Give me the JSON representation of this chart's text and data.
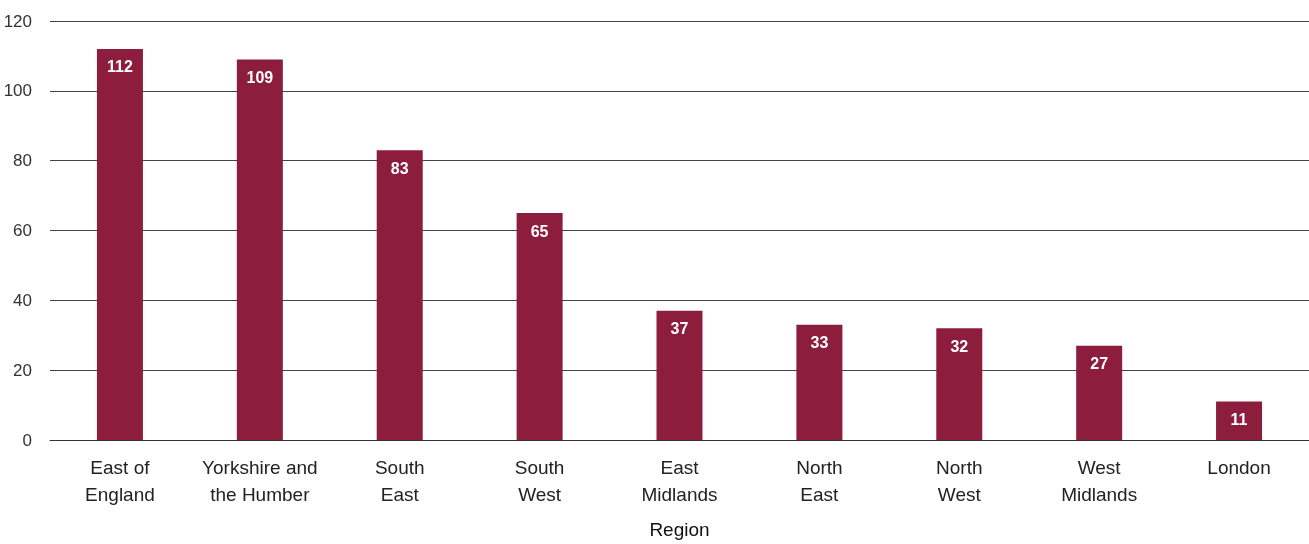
{
  "chart_data": {
    "type": "bar",
    "xlabel": "Region",
    "categories": [
      "East of England",
      "Yorkshire and the Humber",
      "South East",
      "South West",
      "East Midlands",
      "North East",
      "North West",
      "West Midlands",
      "London"
    ],
    "values": [
      112,
      109,
      83,
      65,
      37,
      33,
      32,
      27,
      11
    ],
    "color": "#8c1d3c",
    "ylim": [
      0,
      120
    ],
    "yticks": [
      0,
      20,
      40,
      60,
      80,
      100,
      120
    ],
    "grid": "y",
    "data_labels": true
  }
}
